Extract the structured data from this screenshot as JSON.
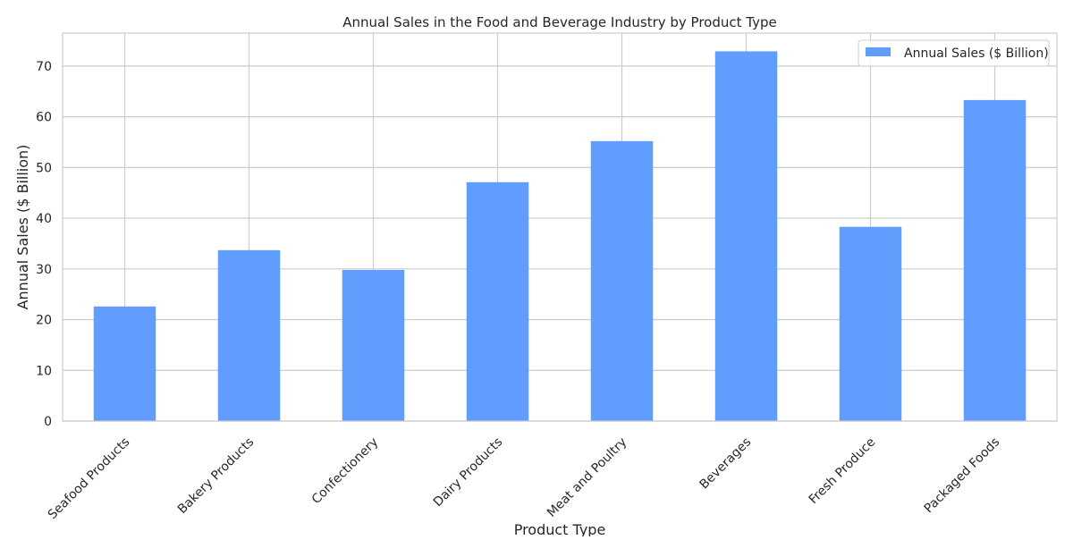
{
  "chart_data": {
    "type": "bar",
    "title": "Annual Sales in the Food and Beverage Industry by Product Type",
    "xlabel": "Product Type",
    "ylabel": "Annual Sales ($ Billion)",
    "categories": [
      "Seafood Products",
      "Bakery Products",
      "Confectionery",
      "Dairy Products",
      "Meat and Poultry",
      "Beverages",
      "Fresh Produce",
      "Packaged Foods"
    ],
    "series": [
      {
        "name": "Annual Sales ($ Billion)",
        "values": [
          22.6,
          33.7,
          29.8,
          47.1,
          55.2,
          72.9,
          38.3,
          63.3
        ],
        "color": "#619cff"
      }
    ],
    "ylim": [
      0,
      76.5
    ],
    "yticks": [
      0,
      10,
      20,
      30,
      40,
      50,
      60,
      70
    ],
    "grid": true,
    "legend_position": "top-right",
    "colors": {
      "bar": "#619cff",
      "grid": "#cccccc",
      "axes": "#cccccc",
      "text": "#262626"
    }
  }
}
